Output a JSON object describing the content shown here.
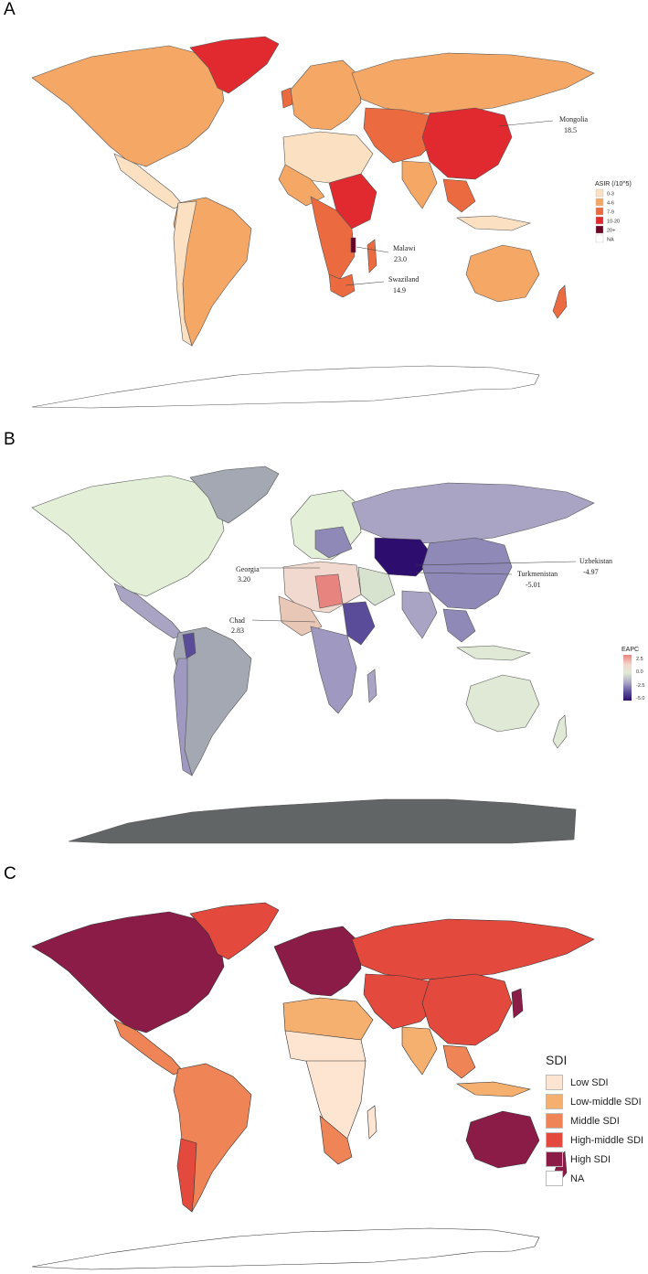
{
  "panels": {
    "a": {
      "letter": "A",
      "legend": {
        "title": "ASIR (/10^5)",
        "items": [
          {
            "label": "0-3",
            "color": "#fbe0c2"
          },
          {
            "label": "4-6",
            "color": "#f5a766"
          },
          {
            "label": "7-9",
            "color": "#ec6a3f"
          },
          {
            "label": "10-20",
            "color": "#e02a2f"
          },
          {
            "label": "20+",
            "color": "#6b0024"
          },
          {
            "label": "NA",
            "color": "#ffffff"
          }
        ]
      },
      "annotations": [
        {
          "name": "Mongolia",
          "value": "18.5"
        },
        {
          "name": "Malawi",
          "value": "23.0"
        },
        {
          "name": "Swaziland",
          "value": "14.9"
        }
      ]
    },
    "b": {
      "letter": "B",
      "legend": {
        "title": "EAPC",
        "ticks": [
          "2.5",
          "0.0",
          "-2.5",
          "-5.0"
        ],
        "gradient": [
          "#e8847f",
          "#f2d9cf",
          "#dfe9d6",
          "#a9a3c4",
          "#5a4c98",
          "#2d0d6e"
        ]
      },
      "annotations": [
        {
          "name": "Uzbekistan",
          "value": "-4.97"
        },
        {
          "name": "Georgia",
          "value": "3.20"
        },
        {
          "name": "Turkmenistan",
          "value": "-5.01"
        },
        {
          "name": "Chad",
          "value": "2.83"
        }
      ]
    },
    "c": {
      "letter": "C",
      "legend": {
        "title": "SDI",
        "items": [
          {
            "label": "Low SDI",
            "color": "#fde5d2"
          },
          {
            "label": "Low-middle SDI",
            "color": "#f5b06f"
          },
          {
            "label": "Middle SDI",
            "color": "#ef8456"
          },
          {
            "label": "High-middle SDI",
            "color": "#e4493e"
          },
          {
            "label": "High SDI",
            "color": "#8a1c47"
          },
          {
            "label": "NA",
            "color": "#ffffff"
          }
        ]
      }
    }
  },
  "colors": {
    "border": "#555555",
    "antarctica_b": "#616565"
  }
}
